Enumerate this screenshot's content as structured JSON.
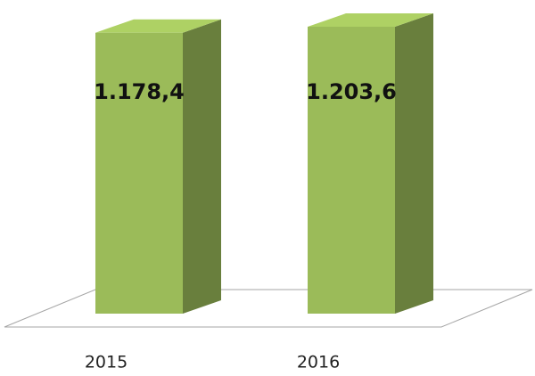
{
  "chart_data": {
    "type": "bar3d",
    "categories": [
      "2015",
      "2016"
    ],
    "values": [
      1178.4,
      1203.6
    ],
    "value_labels": [
      "1.178,4",
      "1.203,6"
    ],
    "color": "#9bbb59"
  }
}
